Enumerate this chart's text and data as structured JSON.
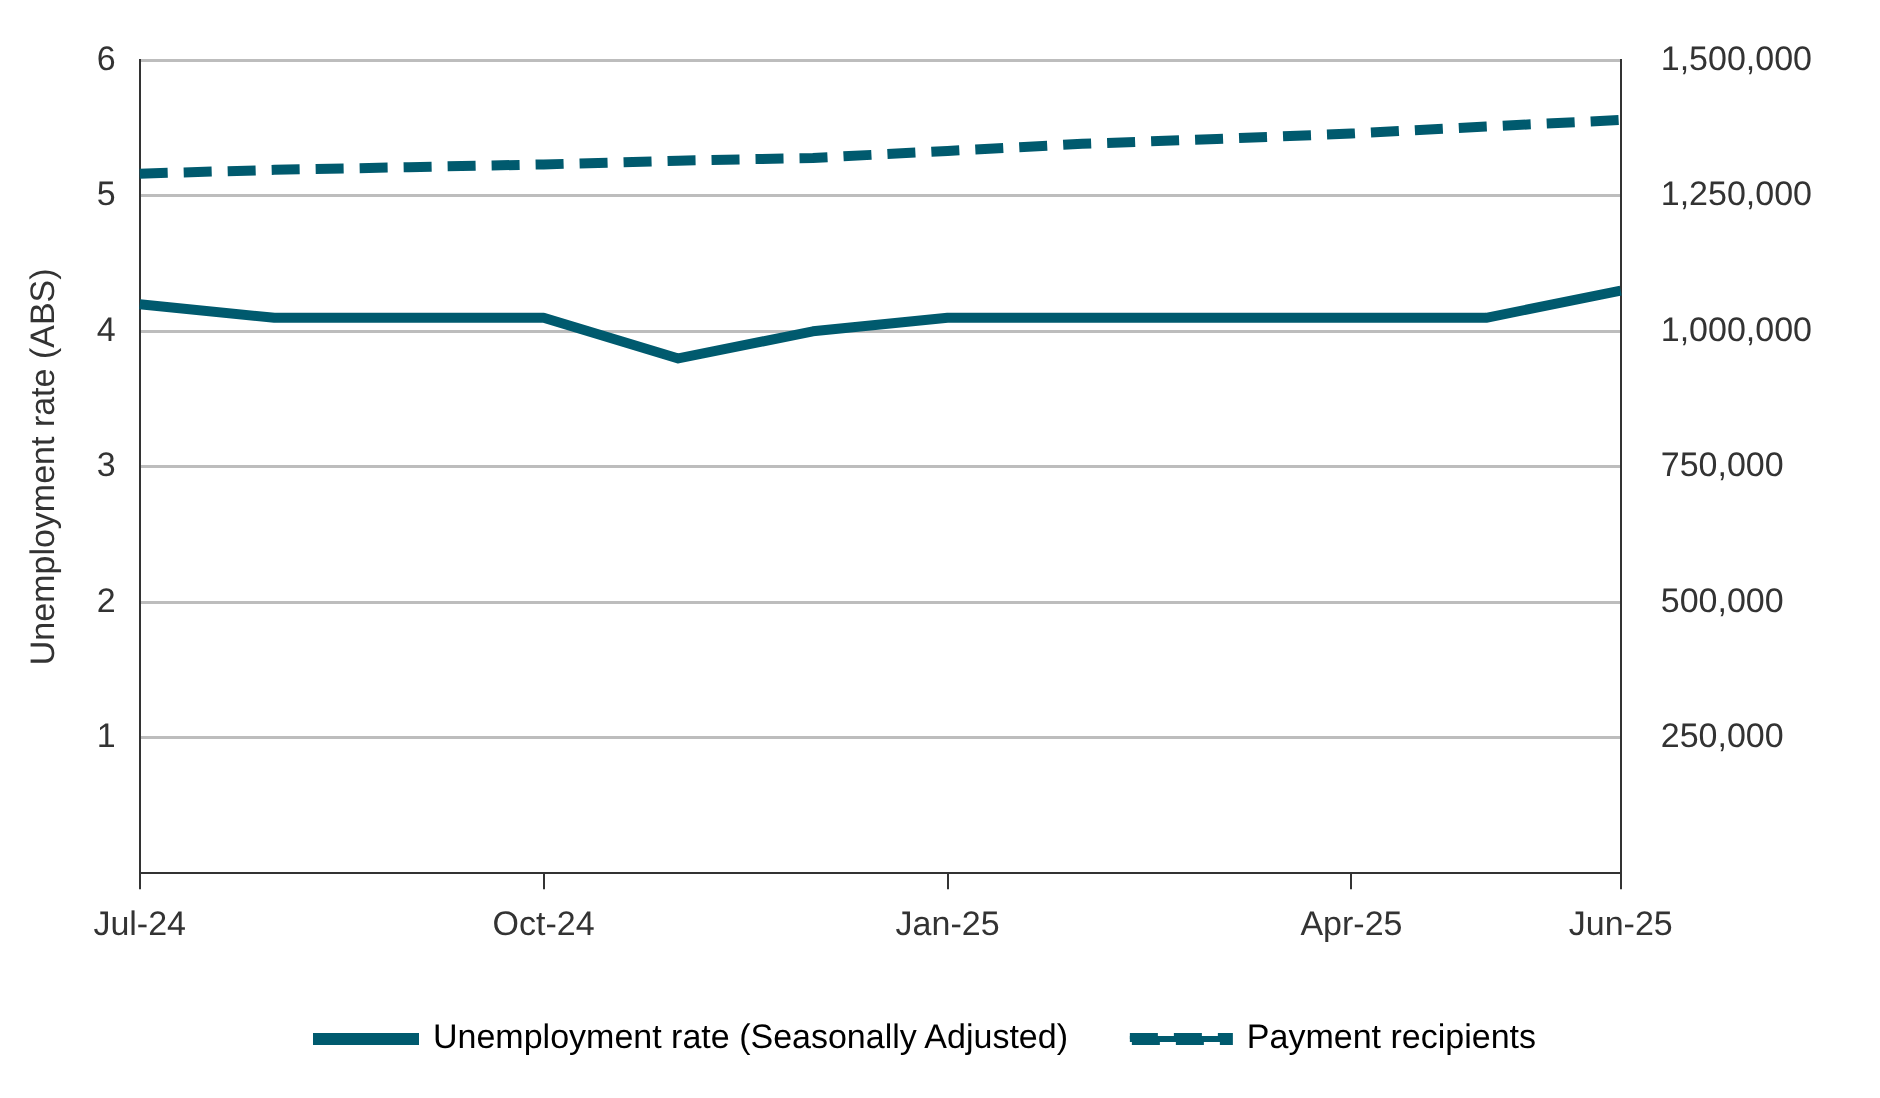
{
  "chart_data": {
    "type": "line",
    "ylabel": "Unemployment rate (ABS)",
    "categories": [
      "Jul-24",
      null,
      null,
      "Oct-24",
      null,
      null,
      "Jan-25",
      null,
      null,
      "Apr-25",
      null,
      "Jun-25"
    ],
    "series": [
      {
        "name": "Unemployment rate (Seasonally Adjusted)",
        "color": "#005a6e",
        "line_style": "solid",
        "values": [
          4.2,
          4.1,
          4.1,
          4.1,
          3.8,
          4.0,
          4.1,
          4.1,
          4.1,
          4.1,
          4.1,
          4.3
        ]
      },
      {
        "name": "Payment recipients",
        "color": "#005a6e",
        "line_style": "dashed",
        "axis": "y2",
        "values": [
          1291000,
          1298000,
          1303000,
          1308000,
          1315000,
          1320000,
          1333000,
          1346000,
          1355000,
          1365000,
          1378000,
          1390000
        ]
      }
    ],
    "ylim": [
      0,
      6
    ],
    "yticks": [
      1,
      2,
      3,
      4,
      5,
      6
    ],
    "y2lim": [
      0,
      1500000
    ],
    "y2ticks": [
      {
        "value": 250000,
        "label": "250,000"
      },
      {
        "value": 500000,
        "label": "500,000"
      },
      {
        "value": 750000,
        "label": "750,000"
      },
      {
        "value": 1000000,
        "label": "1,000,000"
      },
      {
        "value": 1250000,
        "label": "1,250,000"
      },
      {
        "value": 1500000,
        "label": "1,500,000"
      }
    ],
    "grid": "y",
    "legend": "bottom",
    "marker": "none"
  }
}
